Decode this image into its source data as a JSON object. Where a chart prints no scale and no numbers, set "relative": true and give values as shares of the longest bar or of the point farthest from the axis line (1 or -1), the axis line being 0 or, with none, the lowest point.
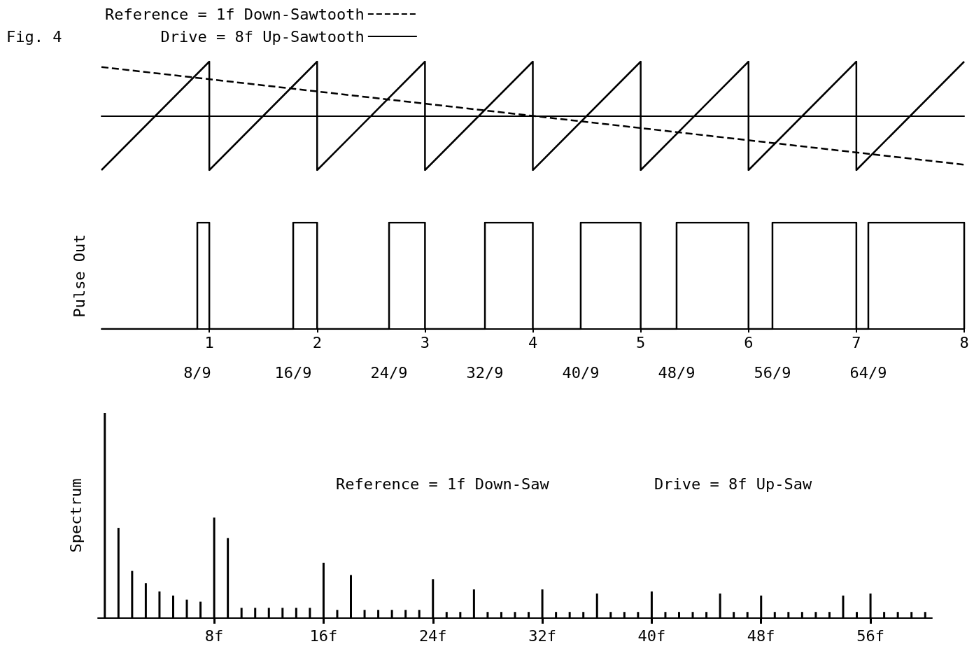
{
  "chart_data": [
    {
      "type": "line",
      "title": "Fig. 4",
      "relative": true,
      "xlim": [
        0,
        8
      ],
      "legend": "top left",
      "marker": "none",
      "series": [
        {
          "name": "Reference = 1f Down-Sawtooth",
          "color": "#000000",
          "line_style": "dashed",
          "x": [
            0,
            8
          ],
          "values": [
            0.9,
            -0.9
          ]
        },
        {
          "name": "Drive = 8f Up-Sawtooth",
          "color": "#000000",
          "line_style": "solid",
          "x": [
            0,
            1,
            1,
            2,
            2,
            3,
            3,
            4,
            4,
            5,
            5,
            6,
            6,
            7,
            7,
            8
          ],
          "values": [
            -1,
            1,
            -1,
            1,
            -1,
            1,
            -1,
            1,
            -1,
            1,
            -1,
            1,
            -1,
            1,
            -1,
            1
          ]
        }
      ]
    },
    {
      "type": "step",
      "ylabel": "Pulse Out",
      "relative": true,
      "xlim": [
        0,
        8
      ],
      "xticks": [
        1,
        2,
        3,
        4,
        5,
        6,
        7,
        8
      ],
      "annotations": [
        "8/9",
        "16/9",
        "24/9",
        "32/9",
        "40/9",
        "48/9",
        "56/9",
        "64/9"
      ],
      "marker": "none",
      "series": [
        {
          "color": "#000000",
          "x": [
            0,
            0.889,
            1,
            1.778,
            2,
            2.667,
            3,
            3.556,
            4,
            4.444,
            5,
            5.333,
            6,
            6.222,
            7,
            7.111,
            8
          ],
          "values": [
            0,
            1,
            0,
            1,
            0,
            1,
            0,
            1,
            0,
            1,
            0,
            1,
            0,
            1,
            0,
            1,
            0
          ]
        }
      ]
    },
    {
      "type": "bar",
      "ylabel": "Spectrum",
      "relative": true,
      "color": "#000000",
      "categories": [
        null,
        null,
        null,
        null,
        null,
        null,
        null,
        null,
        "8f",
        null,
        null,
        null,
        null,
        null,
        null,
        null,
        "16f",
        null,
        null,
        null,
        null,
        null,
        null,
        null,
        "24f",
        null,
        null,
        null,
        null,
        null,
        null,
        null,
        "32f",
        null,
        null,
        null,
        null,
        null,
        null,
        null,
        "40f",
        null,
        null,
        null,
        null,
        null,
        null,
        null,
        "48f",
        null,
        null,
        null,
        null,
        null,
        null,
        null,
        "56f",
        null,
        null,
        null,
        null
      ],
      "values": [
        1.0,
        0.44,
        0.23,
        0.17,
        0.13,
        0.11,
        0.09,
        0.08,
        0.49,
        0.39,
        0.05,
        0.05,
        0.05,
        0.05,
        0.05,
        0.05,
        0.27,
        0.04,
        0.21,
        0.04,
        0.04,
        0.04,
        0.04,
        0.04,
        0.19,
        0.03,
        0.03,
        0.14,
        0.03,
        0.03,
        0.03,
        0.03,
        0.14,
        0.03,
        0.03,
        0.03,
        0.12,
        0.03,
        0.03,
        0.03,
        0.13,
        0.03,
        0.03,
        0.03,
        0.03,
        0.12,
        0.03,
        0.03,
        0.11,
        0.03,
        0.03,
        0.03,
        0.03,
        0.03,
        0.11,
        0.03,
        0.12,
        0.03,
        0.03,
        0.03,
        0.03
      ],
      "annotations": [
        "Reference = 1f Down-Saw",
        "Drive = 8f Up-Saw"
      ]
    }
  ]
}
